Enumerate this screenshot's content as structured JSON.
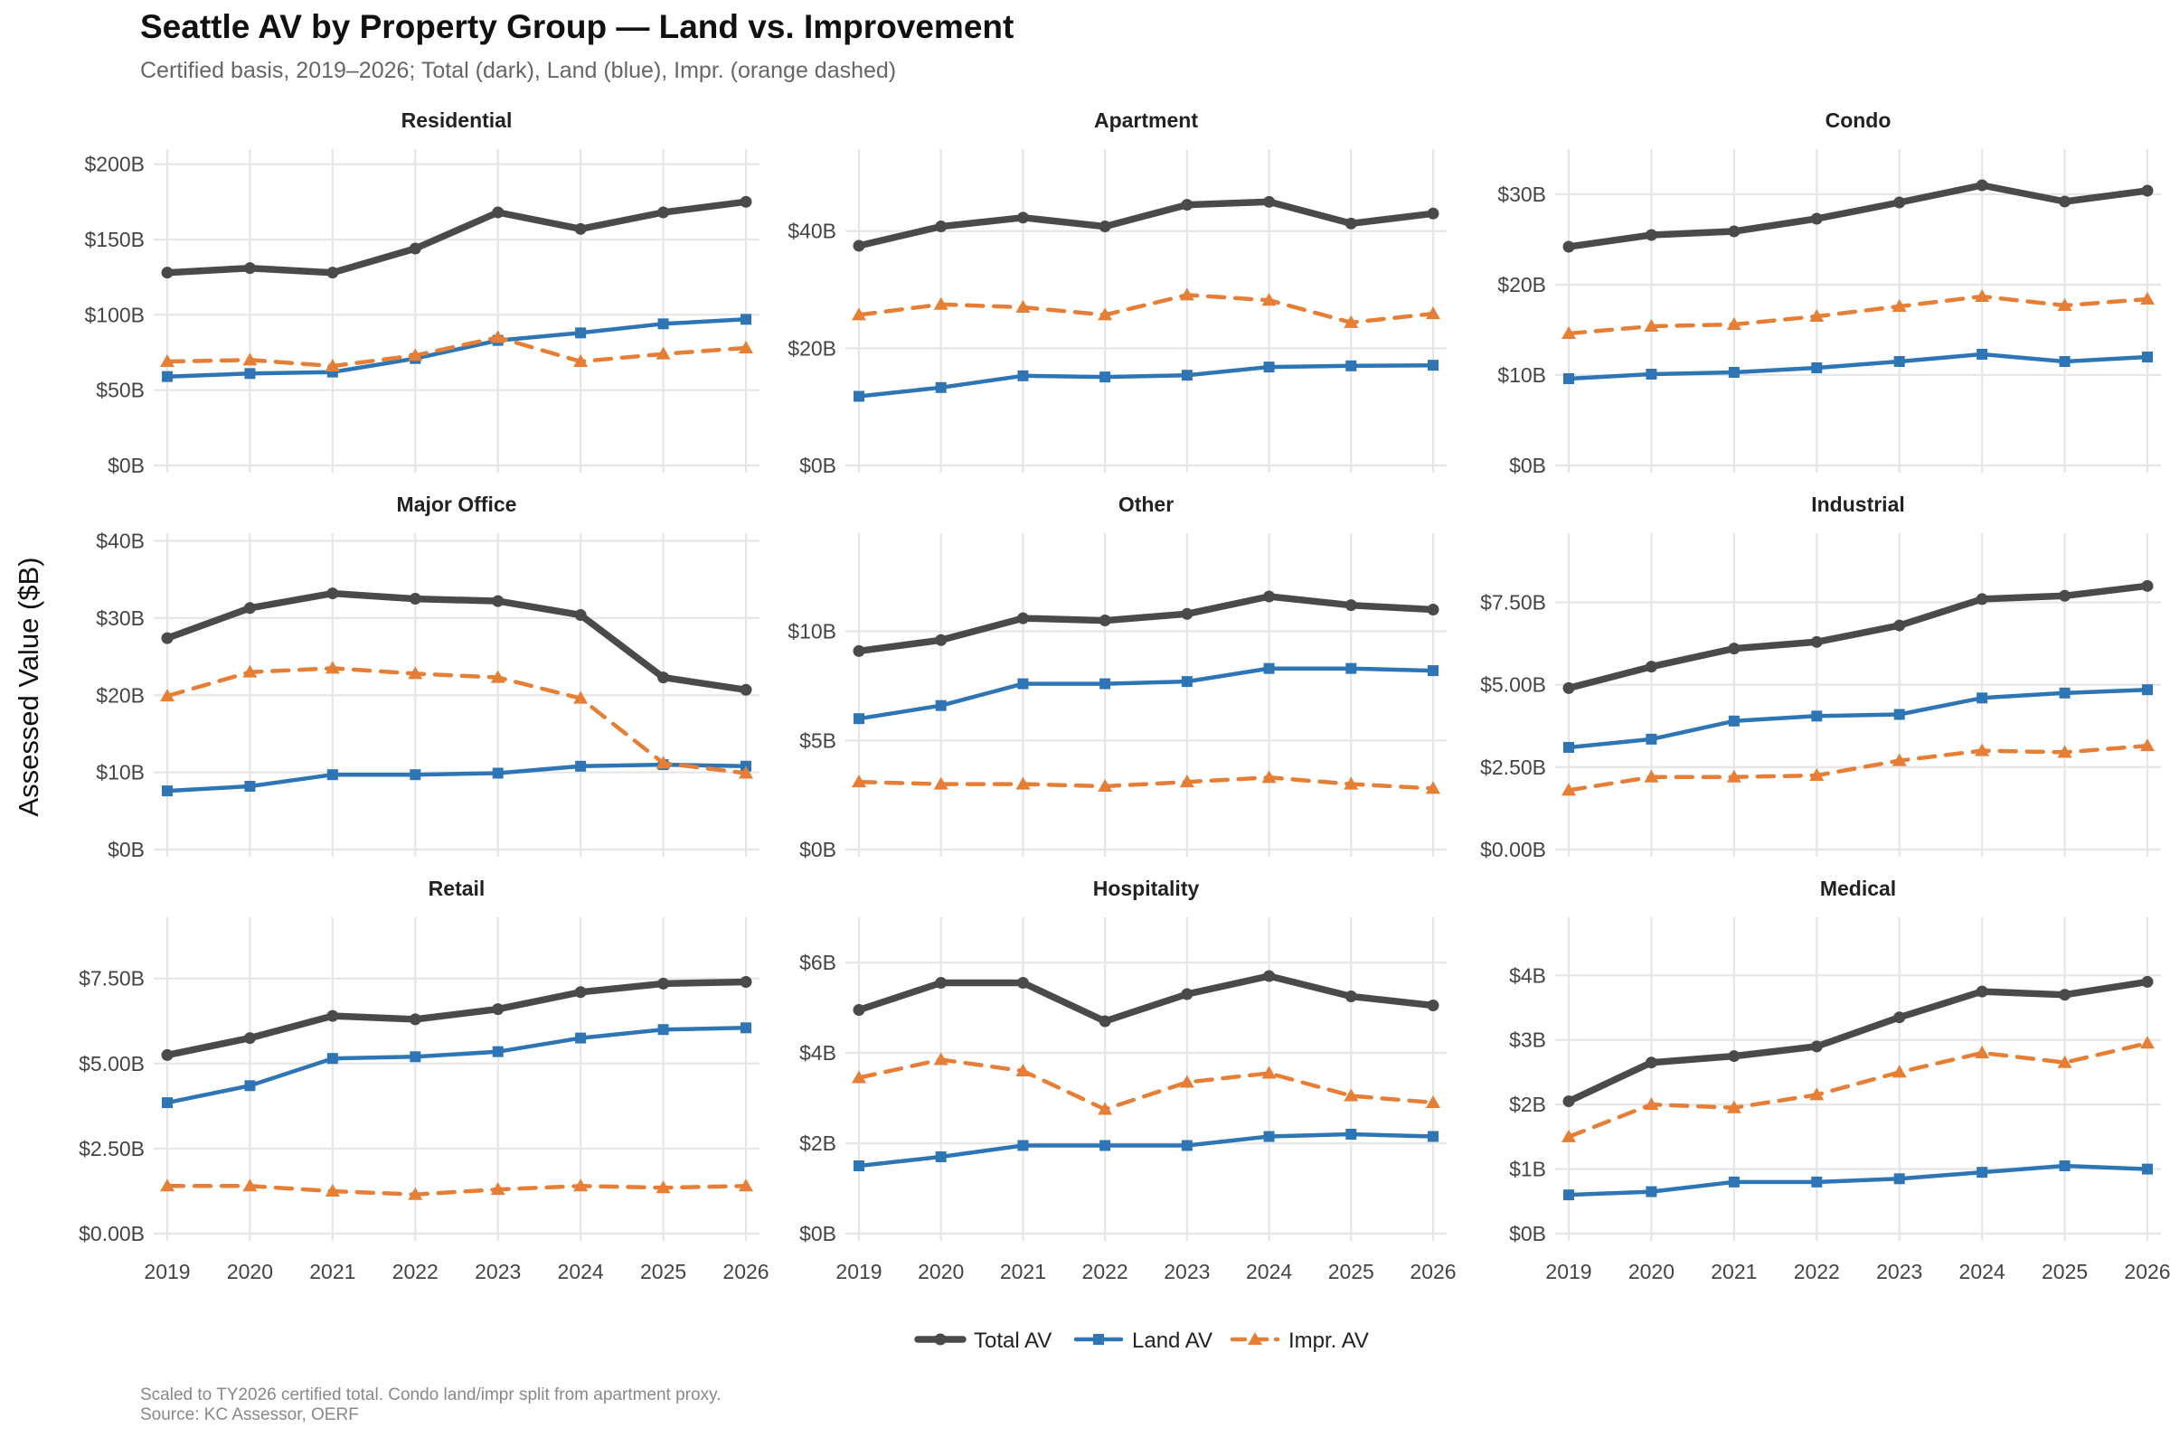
{
  "title": "Seattle AV by Property Group — Land vs. Improvement",
  "subtitle": "Certified basis, 2019–2026; Total (dark), Land (blue), Impr. (orange dashed)",
  "caption_lines": [
    "Scaled to TY2026 certified total. Condo land/impr split from apartment proxy.",
    "Source: KC Assessor, OERF"
  ],
  "colors": {
    "total": "#4a4a4a",
    "land": "#2e75b6",
    "impr": "#e67e35"
  },
  "chart_data": {
    "type": "line",
    "title": "Seattle AV by Property Group — Land vs. Improvement",
    "ylabel": "Assessed Value ($B)",
    "xlabel": "",
    "x": [
      "2019",
      "2020",
      "2021",
      "2022",
      "2023",
      "2024",
      "2025",
      "2026"
    ],
    "legend": {
      "placement": "bottom",
      "entries": [
        "Total AV",
        "Land AV",
        "Impr. AV"
      ]
    },
    "grid": true,
    "panels": [
      {
        "name": "Residential",
        "ylim": [
          0,
          210
        ],
        "ticks": [
          0,
          50,
          100,
          150,
          200
        ],
        "tick_labels": [
          "$0B",
          "$50B",
          "$100B",
          "$150B",
          "$200B"
        ],
        "series": [
          {
            "name": "Total AV",
            "values": [
              128,
              131,
              128,
              144,
              168,
              157,
              168,
              175
            ]
          },
          {
            "name": "Land AV",
            "values": [
              59,
              61,
              62,
              71,
              83,
              88,
              94,
              97
            ]
          },
          {
            "name": "Impr. AV",
            "values": [
              69,
              70,
              66,
              73,
              85,
              69,
              74,
              78
            ]
          }
        ]
      },
      {
        "name": "Apartment",
        "ylim": [
          0,
          54
        ],
        "ticks": [
          0,
          20,
          40
        ],
        "tick_labels": [
          "$0B",
          "$20B",
          "$40B"
        ],
        "series": [
          {
            "name": "Total AV",
            "values": [
              37.5,
              40.8,
              42.3,
              40.8,
              44.5,
              45.0,
              41.3,
              43.0
            ]
          },
          {
            "name": "Land AV",
            "values": [
              11.8,
              13.3,
              15.3,
              15.1,
              15.4,
              16.8,
              17.0,
              17.1
            ]
          },
          {
            "name": "Impr. AV",
            "values": [
              25.7,
              27.5,
              27.0,
              25.7,
              29.1,
              28.2,
              24.4,
              25.9
            ]
          }
        ]
      },
      {
        "name": "Condo",
        "ylim": [
          0,
          35
        ],
        "ticks": [
          0,
          10,
          20,
          30
        ],
        "tick_labels": [
          "$0B",
          "$10B",
          "$20B",
          "$30B"
        ],
        "series": [
          {
            "name": "Total AV",
            "values": [
              24.2,
              25.5,
              25.9,
              27.3,
              29.1,
              31.0,
              29.2,
              30.4
            ]
          },
          {
            "name": "Land AV",
            "values": [
              9.6,
              10.1,
              10.3,
              10.8,
              11.5,
              12.3,
              11.5,
              12.0
            ]
          },
          {
            "name": "Impr. AV",
            "values": [
              14.6,
              15.4,
              15.6,
              16.5,
              17.6,
              18.7,
              17.7,
              18.4
            ]
          }
        ]
      },
      {
        "name": "Major Office",
        "ylim": [
          0,
          41
        ],
        "ticks": [
          0,
          10,
          20,
          30,
          40
        ],
        "tick_labels": [
          "$0B",
          "$10B",
          "$20B",
          "$30B",
          "$40B"
        ],
        "series": [
          {
            "name": "Total AV",
            "values": [
              27.4,
              31.3,
              33.2,
              32.5,
              32.2,
              30.4,
              22.3,
              20.7
            ]
          },
          {
            "name": "Land AV",
            "values": [
              7.6,
              8.2,
              9.7,
              9.7,
              9.9,
              10.8,
              11.0,
              10.8
            ]
          },
          {
            "name": "Impr. AV",
            "values": [
              19.9,
              23.0,
              23.5,
              22.8,
              22.3,
              19.6,
              11.2,
              9.9
            ]
          }
        ]
      },
      {
        "name": "Other",
        "ylim": [
          0,
          14.5
        ],
        "ticks": [
          0,
          5,
          10
        ],
        "tick_labels": [
          "$0B",
          "$5B",
          "$10B"
        ],
        "series": [
          {
            "name": "Total AV",
            "values": [
              9.1,
              9.6,
              10.6,
              10.5,
              10.8,
              11.6,
              11.2,
              11.0
            ]
          },
          {
            "name": "Land AV",
            "values": [
              6.0,
              6.6,
              7.6,
              7.6,
              7.7,
              8.3,
              8.3,
              8.2
            ]
          },
          {
            "name": "Impr. AV",
            "values": [
              3.1,
              3.0,
              3.0,
              2.9,
              3.1,
              3.3,
              3.0,
              2.8
            ]
          }
        ]
      },
      {
        "name": "Industrial",
        "ylim": [
          0,
          9.6
        ],
        "ticks": [
          0,
          2.5,
          5,
          7.5
        ],
        "tick_labels": [
          "$0.00B",
          "$2.50B",
          "$5.00B",
          "$7.50B"
        ],
        "series": [
          {
            "name": "Total AV",
            "values": [
              4.9,
              5.55,
              6.1,
              6.3,
              6.8,
              7.6,
              7.7,
              8.0
            ]
          },
          {
            "name": "Land AV",
            "values": [
              3.1,
              3.35,
              3.9,
              4.05,
              4.1,
              4.6,
              4.75,
              4.85
            ]
          },
          {
            "name": "Impr. AV",
            "values": [
              1.8,
              2.2,
              2.2,
              2.25,
              2.7,
              3.0,
              2.95,
              3.15
            ]
          }
        ]
      },
      {
        "name": "Retail",
        "ylim": [
          0,
          9.3
        ],
        "ticks": [
          0,
          2.5,
          5,
          7.5
        ],
        "tick_labels": [
          "$0.00B",
          "$2.50B",
          "$5.00B",
          "$7.50B"
        ],
        "series": [
          {
            "name": "Total AV",
            "values": [
              5.25,
              5.75,
              6.4,
              6.3,
              6.6,
              7.1,
              7.35,
              7.4
            ]
          },
          {
            "name": "Land AV",
            "values": [
              3.85,
              4.35,
              5.15,
              5.2,
              5.35,
              5.75,
              6.0,
              6.05
            ]
          },
          {
            "name": "Impr. AV",
            "values": [
              1.4,
              1.4,
              1.25,
              1.15,
              1.3,
              1.4,
              1.35,
              1.4
            ]
          }
        ]
      },
      {
        "name": "Hospitality",
        "ylim": [
          0,
          7
        ],
        "ticks": [
          0,
          2,
          4,
          6
        ],
        "tick_labels": [
          "$0B",
          "$2B",
          "$4B",
          "$6B"
        ],
        "series": [
          {
            "name": "Total AV",
            "values": [
              4.95,
              5.55,
              5.55,
              4.7,
              5.3,
              5.7,
              5.25,
              5.05
            ]
          },
          {
            "name": "Land AV",
            "values": [
              1.5,
              1.7,
              1.95,
              1.95,
              1.95,
              2.15,
              2.2,
              2.15
            ]
          },
          {
            "name": "Impr. AV",
            "values": [
              3.45,
              3.85,
              3.6,
              2.75,
              3.35,
              3.55,
              3.05,
              2.9
            ]
          }
        ]
      },
      {
        "name": "Medical",
        "ylim": [
          0,
          4.9
        ],
        "ticks": [
          0,
          1,
          2,
          3,
          4
        ],
        "tick_labels": [
          "$0B",
          "$1B",
          "$2B",
          "$3B",
          "$4B"
        ],
        "series": [
          {
            "name": "Total AV",
            "values": [
              2.05,
              2.65,
              2.75,
              2.9,
              3.35,
              3.75,
              3.7,
              3.9
            ]
          },
          {
            "name": "Land AV",
            "values": [
              0.6,
              0.65,
              0.8,
              0.8,
              0.85,
              0.95,
              1.05,
              1.0
            ]
          },
          {
            "name": "Impr. AV",
            "values": [
              1.5,
              2.0,
              1.95,
              2.15,
              2.5,
              2.8,
              2.65,
              2.95
            ]
          }
        ]
      }
    ]
  }
}
